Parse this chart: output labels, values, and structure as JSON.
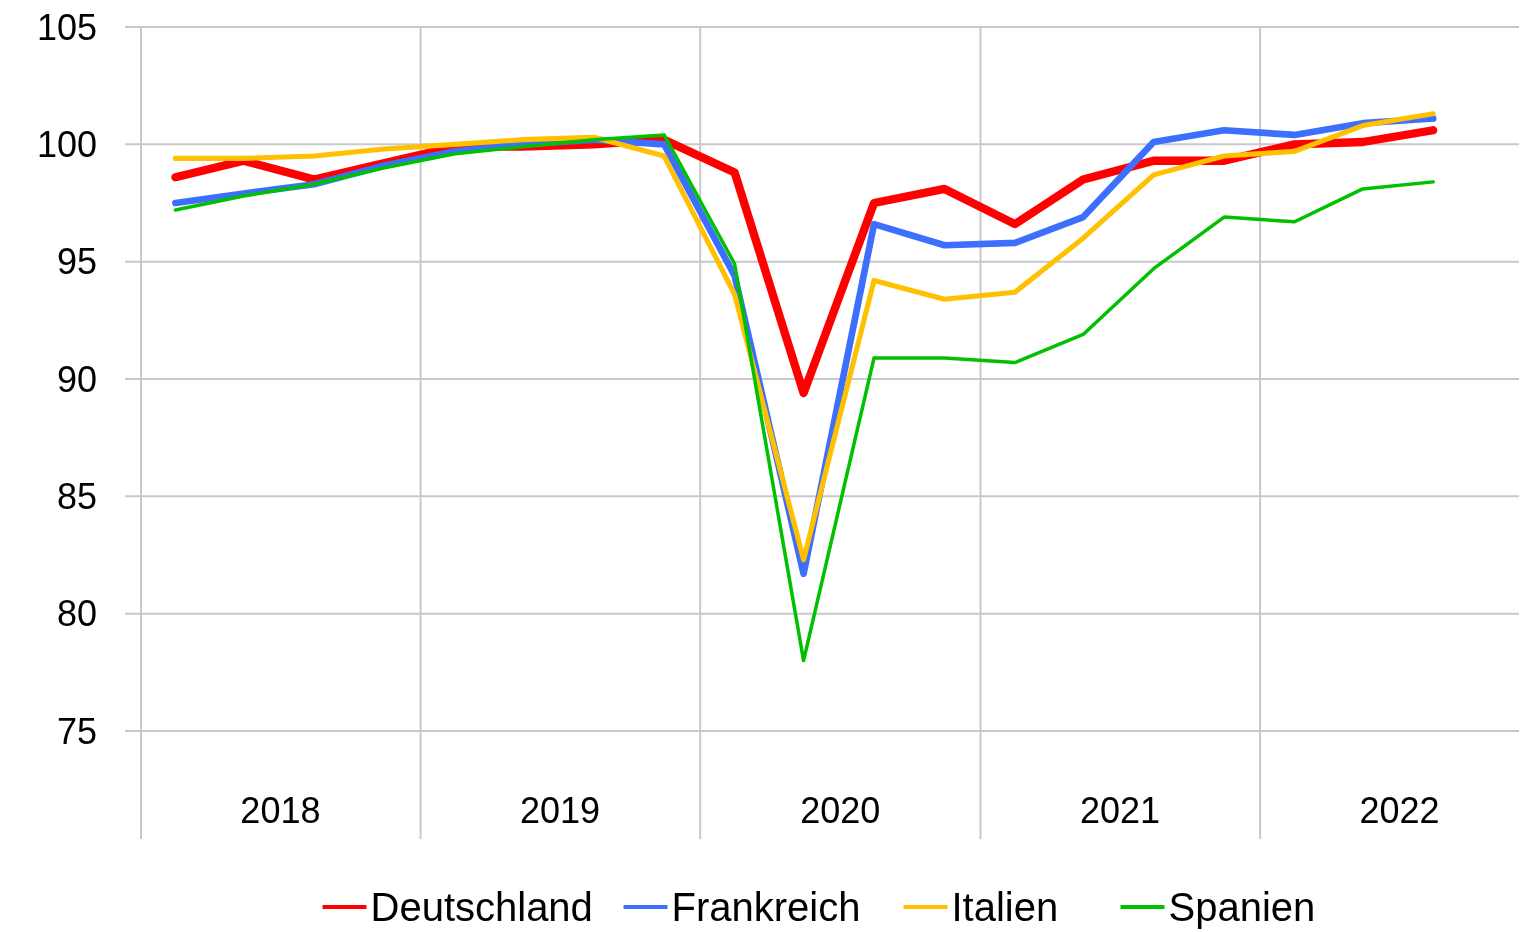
{
  "chart_data": {
    "type": "line",
    "x": [
      "2018-02-15",
      "2018-05-15",
      "2018-08-15",
      "2018-11-15",
      "2019-02-15",
      "2019-05-15",
      "2019-08-15",
      "2019-11-15",
      "2020-02-15",
      "2020-05-15",
      "2020-08-15",
      "2020-11-15",
      "2021-02-15",
      "2021-05-15",
      "2021-08-15",
      "2021-11-15",
      "2022-02-15",
      "2022-05-15",
      "2022-08-15"
    ],
    "series": [
      {
        "name": "Deutschland",
        "color": "#ff0000",
        "values": [
          98.6,
          99.3,
          98.5,
          99.2,
          99.9,
          99.9,
          100.0,
          100.2,
          98.8,
          89.4,
          97.5,
          98.1,
          96.6,
          98.5,
          99.3,
          99.3,
          100.0,
          100.1,
          100.6
        ]
      },
      {
        "name": "Frankreich",
        "color": "#3d6fff",
        "values": [
          97.5,
          97.9,
          98.3,
          99.1,
          99.7,
          100.0,
          100.2,
          100.0,
          94.4,
          81.7,
          96.6,
          95.7,
          95.8,
          96.9,
          100.1,
          100.6,
          100.4,
          100.9,
          101.1
        ]
      },
      {
        "name": "Italien",
        "color": "#ffc000",
        "values": [
          99.4,
          99.4,
          99.5,
          99.8,
          100.0,
          100.2,
          100.3,
          99.5,
          93.6,
          82.3,
          94.2,
          93.4,
          93.7,
          96.0,
          98.7,
          99.5,
          99.7,
          100.8,
          101.3
        ]
      },
      {
        "name": "Spanien",
        "color": "#00c000",
        "values": [
          97.2,
          97.8,
          98.3,
          99.0,
          99.6,
          99.9,
          100.2,
          100.4,
          94.9,
          78.0,
          90.9,
          90.9,
          90.7,
          91.9,
          94.7,
          96.9,
          96.7,
          98.1,
          98.4
        ]
      }
    ],
    "xlim": [
      "2018-01-01",
      "2022-12-05"
    ],
    "xticks": [
      {
        "value": "2018-01-01",
        "label": null
      },
      {
        "value": "2018-07-02",
        "label": "2018"
      },
      {
        "value": "2019-01-01",
        "label": null
      },
      {
        "value": "2019-07-02",
        "label": "2019"
      },
      {
        "value": "2020-01-01",
        "label": null
      },
      {
        "value": "2020-07-02",
        "label": "2020"
      },
      {
        "value": "2021-01-01",
        "label": null
      },
      {
        "value": "2021-07-02",
        "label": "2021"
      },
      {
        "value": "2022-01-01",
        "label": null
      },
      {
        "value": "2022-07-02",
        "label": "2022"
      }
    ],
    "ylim": [
      75,
      105
    ],
    "yticks": [
      75,
      80,
      85,
      90,
      95,
      100,
      105
    ],
    "grid": true,
    "legend": "bottom",
    "marker": "none",
    "line_style": "solid"
  }
}
